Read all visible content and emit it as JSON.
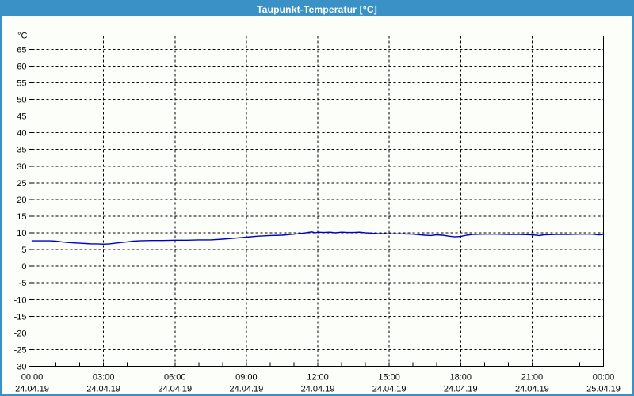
{
  "window": {
    "title": "Taupunkt-Temperatur [°C]"
  },
  "colors": {
    "titlebar": "#3A91C6",
    "window_border": "#3A91C6",
    "background": "#FCFEF9",
    "grid": "#000000",
    "axis": "#000000",
    "series_line": "#0000C8",
    "title_text": "#FFFFFF",
    "label_text": "#000000"
  },
  "chart_data": {
    "type": "line",
    "title": "Taupunkt-Temperatur [°C]",
    "ylabel_unit": "°C",
    "ylim": [
      -30,
      69
    ],
    "xlim_hours": [
      0,
      24
    ],
    "grid": "dashed",
    "legend": "none",
    "y_ticks": [
      65,
      60,
      55,
      50,
      45,
      40,
      35,
      30,
      25,
      20,
      15,
      10,
      5,
      0,
      -5,
      -10,
      -15,
      -20,
      -25,
      -30
    ],
    "x_ticks": [
      {
        "hour": 0,
        "time": "00:00",
        "date": "24.04.19"
      },
      {
        "hour": 3,
        "time": "03:00",
        "date": "24.04.19"
      },
      {
        "hour": 6,
        "time": "06:00",
        "date": "24.04.19"
      },
      {
        "hour": 9,
        "time": "09:00",
        "date": "24.04.19"
      },
      {
        "hour": 12,
        "time": "12:00",
        "date": "24.04.19"
      },
      {
        "hour": 15,
        "time": "15:00",
        "date": "24.04.19"
      },
      {
        "hour": 18,
        "time": "18:00",
        "date": "24.04.19"
      },
      {
        "hour": 21,
        "time": "21:00",
        "date": "24.04.19"
      },
      {
        "hour": 24,
        "time": "00:00",
        "date": "25.04.19"
      }
    ],
    "minor_x_tick_every_hours": 1,
    "series": [
      {
        "name": "Taupunkt-Temperatur",
        "points": [
          [
            0,
            7.6
          ],
          [
            0.25,
            7.6
          ],
          [
            0.5,
            7.6
          ],
          [
            0.75,
            7.6
          ],
          [
            1,
            7.5
          ],
          [
            1.25,
            7.3
          ],
          [
            1.5,
            7.1
          ],
          [
            1.75,
            7.0
          ],
          [
            2,
            6.9
          ],
          [
            2.25,
            6.8
          ],
          [
            2.5,
            6.7
          ],
          [
            2.75,
            6.7
          ],
          [
            3,
            6.6
          ],
          [
            3.25,
            6.7
          ],
          [
            3.5,
            6.9
          ],
          [
            3.75,
            7.1
          ],
          [
            4,
            7.3
          ],
          [
            4.25,
            7.5
          ],
          [
            4.5,
            7.6
          ],
          [
            5,
            7.7
          ],
          [
            5.5,
            7.7
          ],
          [
            6,
            7.8
          ],
          [
            6.5,
            7.8
          ],
          [
            7,
            7.9
          ],
          [
            7.5,
            7.9
          ],
          [
            8,
            8.1
          ],
          [
            8.5,
            8.4
          ],
          [
            9,
            8.7
          ],
          [
            9.5,
            9.0
          ],
          [
            10,
            9.2
          ],
          [
            10.5,
            9.3
          ],
          [
            11,
            9.6
          ],
          [
            11.25,
            9.8
          ],
          [
            11.5,
            10.0
          ],
          [
            11.75,
            10.3
          ],
          [
            11.9,
            10.0
          ],
          [
            12,
            10.2
          ],
          [
            12.25,
            10.1
          ],
          [
            12.5,
            10.2
          ],
          [
            12.75,
            10.0
          ],
          [
            13,
            10.2
          ],
          [
            13.25,
            10.1
          ],
          [
            13.5,
            10.1
          ],
          [
            13.75,
            10.2
          ],
          [
            14,
            10.0
          ],
          [
            14.25,
            9.9
          ],
          [
            14.5,
            9.8
          ],
          [
            15,
            9.7
          ],
          [
            15.5,
            9.7
          ],
          [
            16,
            9.6
          ],
          [
            16.5,
            9.3
          ],
          [
            16.75,
            9.2
          ],
          [
            17,
            9.4
          ],
          [
            17.25,
            9.3
          ],
          [
            17.5,
            9.0
          ],
          [
            17.75,
            8.8
          ],
          [
            18,
            8.9
          ],
          [
            18.25,
            9.3
          ],
          [
            18.5,
            9.5
          ],
          [
            19,
            9.6
          ],
          [
            19.5,
            9.6
          ],
          [
            20,
            9.5
          ],
          [
            20.5,
            9.5
          ],
          [
            21,
            9.4
          ],
          [
            21.3,
            9.2
          ],
          [
            21.5,
            9.4
          ],
          [
            22,
            9.5
          ],
          [
            22.5,
            9.5
          ],
          [
            23,
            9.6
          ],
          [
            23.5,
            9.6
          ],
          [
            23.8,
            9.4
          ],
          [
            24,
            9.5
          ]
        ]
      }
    ]
  }
}
